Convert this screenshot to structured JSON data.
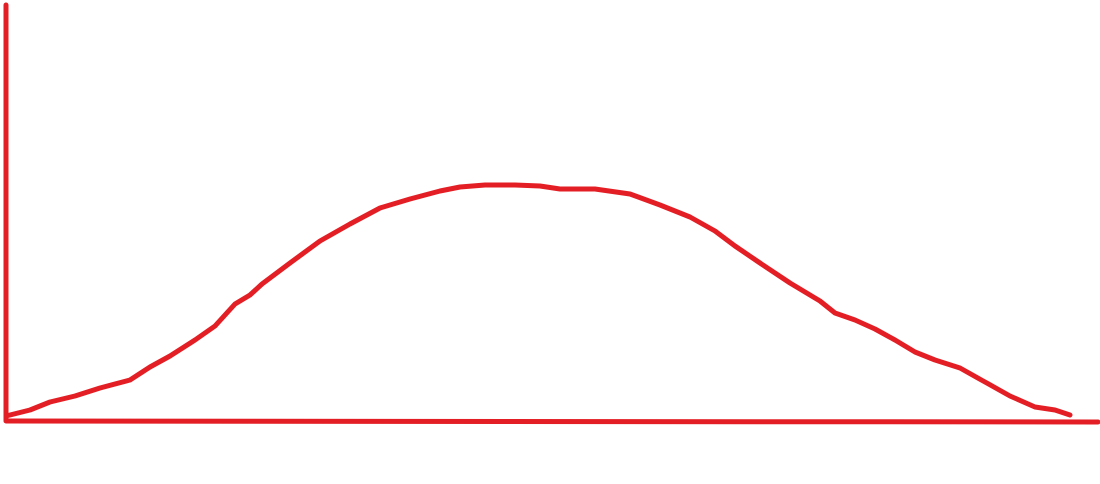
{
  "diagram": {
    "stroke_color": "#e31e24"
  }
}
